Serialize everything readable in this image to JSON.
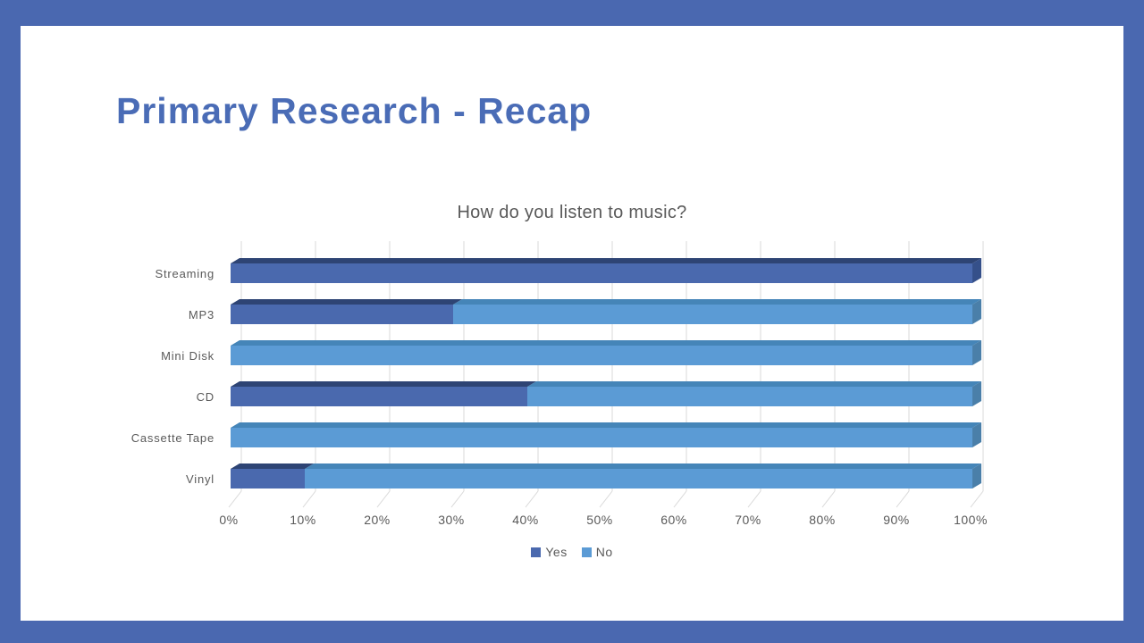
{
  "theme": {
    "frame_color": "#4a68b0",
    "slide_background": "#ffffff",
    "title_color": "#4a6cb6",
    "chart_text_color": "#595959",
    "grid_color": "#d9d9d9"
  },
  "slide": {
    "title": "Primary Research - Recap"
  },
  "chart_data": {
    "type": "bar",
    "orientation": "horizontal",
    "stacked": true,
    "effect_3d": true,
    "title": "How do you listen to music?",
    "categories": [
      "Streaming",
      "MP3",
      "Mini Disk",
      "CD",
      "Cassette Tape",
      "Vinyl"
    ],
    "series": [
      {
        "name": "Yes",
        "color": "#4a69ae",
        "color_top": "#2e4474",
        "color_side": "#35508a",
        "values": [
          100,
          30,
          0,
          40,
          0,
          10
        ]
      },
      {
        "name": "No",
        "color": "#5b9bd5",
        "color_top": "#4585b8",
        "color_side": "#4a7fa9",
        "values": [
          0,
          70,
          100,
          60,
          100,
          90
        ]
      }
    ],
    "x_ticks": [
      "0%",
      "10%",
      "20%",
      "30%",
      "40%",
      "50%",
      "60%",
      "70%",
      "80%",
      "90%",
      "100%"
    ],
    "xlim": [
      0,
      100
    ],
    "grid": true,
    "legend_position": "bottom"
  }
}
